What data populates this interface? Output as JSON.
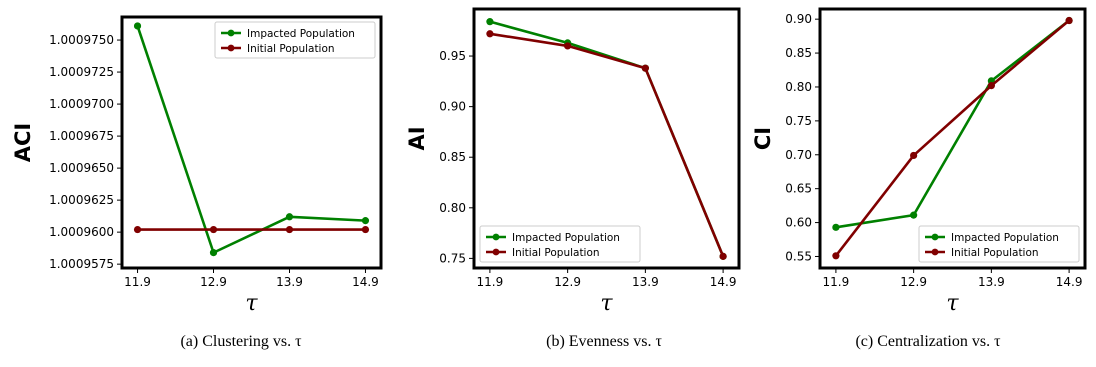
{
  "chart_data": [
    {
      "type": "line",
      "ylabel": "ACI",
      "xlabel": "τ",
      "caption": "(a) Clustering vs. τ",
      "x": [
        11.9,
        12.9,
        13.9,
        14.9
      ],
      "xticks": [
        "11.9",
        "12.9",
        "13.9",
        "14.9"
      ],
      "ylim": [
        1.0009572,
        1.0009768
      ],
      "yticks": [
        1.0009575,
        1.00096,
        1.0009625,
        1.000965,
        1.0009675,
        1.00097,
        1.0009725,
        1.000975
      ],
      "yticklabels": [
        "1.0009575",
        "1.0009600",
        "1.0009625",
        "1.0009650",
        "1.0009675",
        "1.0009700",
        "1.0009725",
        "1.0009750"
      ],
      "legend_loc": "top-right",
      "series": [
        {
          "name": "Impacted Population",
          "color": "#008000",
          "values": [
            1.0009761,
            1.0009584,
            1.0009612,
            1.0009609
          ]
        },
        {
          "name": "Initial Population",
          "color": "#800000",
          "values": [
            1.0009602,
            1.0009602,
            1.0009602,
            1.0009602
          ]
        }
      ]
    },
    {
      "type": "line",
      "ylabel": "AI",
      "xlabel": "τ",
      "caption": "(b) Evenness vs. τ",
      "x": [
        11.9,
        12.9,
        13.9,
        14.9
      ],
      "xticks": [
        "11.9",
        "12.9",
        "13.9",
        "14.9"
      ],
      "ylim": [
        0.7405,
        0.9965
      ],
      "yticks": [
        0.75,
        0.8,
        0.85,
        0.9,
        0.95
      ],
      "yticklabels": [
        "0.75",
        "0.80",
        "0.85",
        "0.90",
        "0.95"
      ],
      "legend_loc": "bottom-left",
      "series": [
        {
          "name": "Impacted Population",
          "color": "#008000",
          "values": [
            0.984,
            0.963,
            0.938,
            0.752
          ]
        },
        {
          "name": "Initial Population",
          "color": "#800000",
          "values": [
            0.972,
            0.96,
            0.938,
            0.752
          ]
        }
      ]
    },
    {
      "type": "line",
      "ylabel": "CI",
      "xlabel": "τ",
      "caption": "(c) Centralization vs. τ",
      "x": [
        11.9,
        12.9,
        13.9,
        14.9
      ],
      "xticks": [
        "11.9",
        "12.9",
        "13.9",
        "14.9"
      ],
      "ylim": [
        0.533,
        0.915
      ],
      "yticks": [
        0.55,
        0.6,
        0.65,
        0.7,
        0.75,
        0.8,
        0.85,
        0.9
      ],
      "yticklabels": [
        "0.55",
        "0.60",
        "0.65",
        "0.70",
        "0.75",
        "0.80",
        "0.85",
        "0.90"
      ],
      "legend_loc": "bottom-right",
      "series": [
        {
          "name": "Impacted Population",
          "color": "#008000",
          "values": [
            0.593,
            0.611,
            0.809,
            0.898
          ]
        },
        {
          "name": "Initial Population",
          "color": "#800000",
          "values": [
            0.551,
            0.699,
            0.802,
            0.898
          ]
        }
      ]
    }
  ]
}
